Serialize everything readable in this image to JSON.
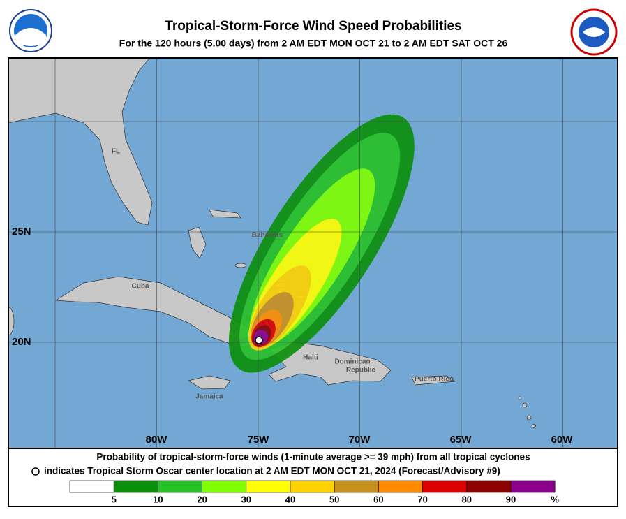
{
  "header": {
    "title": "Tropical-Storm-Force Wind Speed Probabilities",
    "subtitle": "For the 120 hours (5.00 days) from 2 AM EDT MON OCT 21 to 2 AM EDT SAT OCT 26"
  },
  "map": {
    "place_labels": [
      "FL",
      "Bahamas",
      "Cuba",
      "Jamaica",
      "Haiti",
      "Dominican",
      "Republic",
      "Puerto Rico"
    ],
    "lat_labels": [
      "25N",
      "20N"
    ],
    "lon_labels": [
      "80W",
      "75W",
      "70W",
      "65W",
      "60W"
    ]
  },
  "footer": {
    "line1": "Probability of tropical-storm-force winds (1-minute average >= 39 mph) from all tropical cyclones",
    "line2": "indicates Tropical Storm Oscar center location at 2 AM EDT MON OCT 21, 2024 (Forecast/Advisory #9)"
  },
  "legend": {
    "colors": [
      "#ffffff",
      "#0a8f0a",
      "#26c126",
      "#80ff00",
      "#ffff00",
      "#ffd200",
      "#c8901e",
      "#ff8c00",
      "#dd0000",
      "#8b0000",
      "#8b008b"
    ],
    "ticks": [
      5,
      10,
      20,
      30,
      40,
      50,
      60,
      70,
      80,
      90
    ],
    "unit": "%"
  }
}
